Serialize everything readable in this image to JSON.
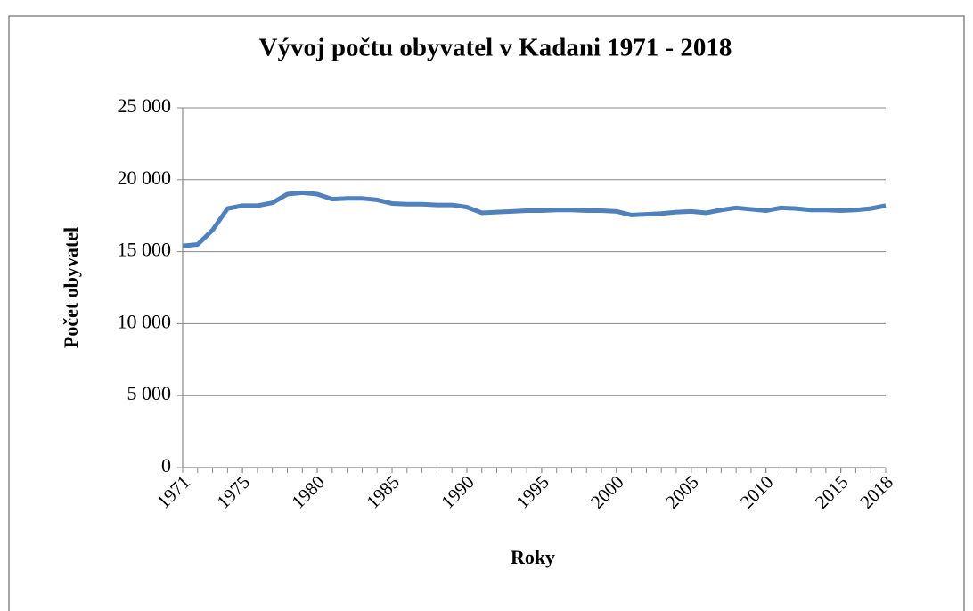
{
  "chart_data": {
    "type": "line",
    "title": "Vývoj počtu obyvatel v Kadani 1971 - 2018",
    "x_label": "Roky",
    "y_label": "Počet obyvatel",
    "x": [
      1971,
      1972,
      1973,
      1974,
      1975,
      1976,
      1977,
      1978,
      1979,
      1980,
      1981,
      1982,
      1983,
      1984,
      1985,
      1986,
      1987,
      1988,
      1989,
      1990,
      1991,
      1992,
      1993,
      1994,
      1995,
      1996,
      1997,
      1998,
      1999,
      2000,
      2001,
      2002,
      2003,
      2004,
      2005,
      2006,
      2007,
      2008,
      2009,
      2010,
      2011,
      2012,
      2013,
      2014,
      2015,
      2016,
      2017,
      2018
    ],
    "series": [
      {
        "name": "Počet obyvatel",
        "color": "#4f81bd",
        "values": [
          15400,
          15500,
          16500,
          18000,
          18200,
          18200,
          18400,
          19000,
          19100,
          19000,
          18650,
          18700,
          18700,
          18600,
          18350,
          18300,
          18300,
          18250,
          18250,
          18100,
          17700,
          17750,
          17800,
          17850,
          17850,
          17900,
          17900,
          17850,
          17850,
          17800,
          17550,
          17600,
          17650,
          17750,
          17800,
          17700,
          17900,
          18050,
          17950,
          17850,
          18050,
          18000,
          17900,
          17900,
          17850,
          17900,
          18000,
          18200
        ]
      }
    ],
    "xlim": [
      1971,
      2018
    ],
    "xticks": [
      1971,
      1975,
      1980,
      1985,
      1990,
      1995,
      2000,
      2005,
      2010,
      2015,
      2018
    ],
    "ylim": [
      0,
      25000
    ],
    "yticks": [
      0,
      {
        "value": 5000,
        "label": "5 000"
      },
      {
        "value": 10000,
        "label": "10 000"
      },
      {
        "value": 15000,
        "label": "15 000"
      },
      {
        "value": 20000,
        "label": "20 000"
      },
      {
        "value": 25000,
        "label": "25 000"
      }
    ],
    "grid": true
  }
}
